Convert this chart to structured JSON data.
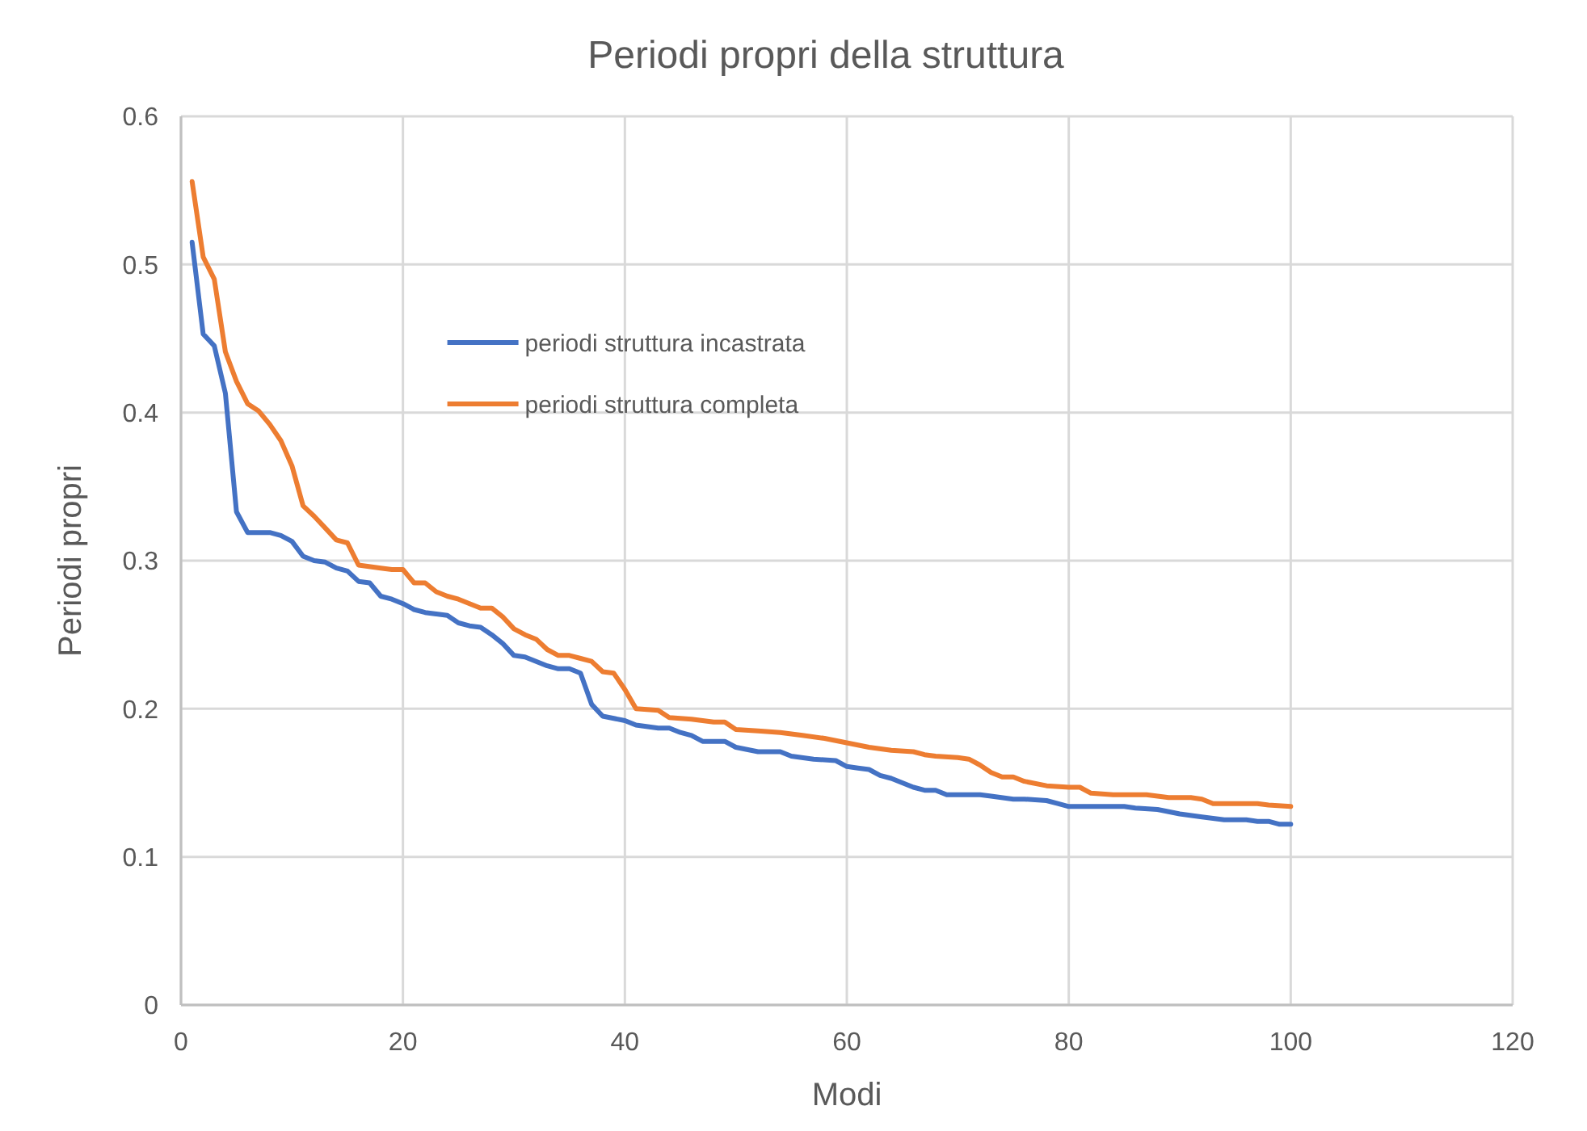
{
  "chart_data": {
    "type": "line",
    "title": "Periodi propri della struttura",
    "xlabel": "Modi",
    "ylabel": "Periodi propri",
    "xlim": [
      0,
      120
    ],
    "xticks": [
      0,
      20,
      40,
      60,
      80,
      100,
      120
    ],
    "ylim": [
      0,
      0.6
    ],
    "yticks": [
      0,
      0.1,
      0.2,
      0.3,
      0.4,
      0.5,
      0.6
    ],
    "grid": true,
    "legend": "top left",
    "marker": "none",
    "line_style": "solid",
    "series": [
      {
        "name": "periodi struttura incastrata",
        "color": "#4472c4",
        "x": [
          1,
          2,
          3,
          4,
          5,
          6,
          8,
          9,
          10,
          11,
          12,
          13,
          14,
          15,
          16,
          17,
          18,
          19,
          20,
          21,
          22,
          24,
          25,
          26,
          27,
          28,
          29,
          30,
          31,
          32,
          33,
          34,
          35,
          36,
          37,
          38,
          40,
          41,
          43,
          44,
          45,
          46,
          47,
          49,
          50,
          52,
          54,
          55,
          57,
          59,
          60,
          61,
          62,
          63,
          64,
          66,
          67,
          68,
          69,
          72,
          73,
          75,
          76,
          78,
          79,
          80,
          85,
          86,
          88,
          90,
          92,
          94,
          96,
          97,
          98,
          99,
          100
        ],
        "values": [
          0.515,
          0.453,
          0.445,
          0.413,
          0.333,
          0.319,
          0.319,
          0.317,
          0.313,
          0.303,
          0.3,
          0.299,
          0.295,
          0.293,
          0.286,
          0.285,
          0.276,
          0.274,
          0.271,
          0.267,
          0.265,
          0.263,
          0.258,
          0.256,
          0.255,
          0.25,
          0.244,
          0.236,
          0.235,
          0.232,
          0.229,
          0.227,
          0.227,
          0.224,
          0.203,
          0.195,
          0.192,
          0.189,
          0.187,
          0.187,
          0.184,
          0.182,
          0.178,
          0.178,
          0.174,
          0.171,
          0.171,
          0.168,
          0.166,
          0.165,
          0.161,
          0.16,
          0.159,
          0.155,
          0.153,
          0.147,
          0.145,
          0.145,
          0.142,
          0.142,
          0.141,
          0.139,
          0.139,
          0.138,
          0.136,
          0.134,
          0.134,
          0.133,
          0.132,
          0.129,
          0.127,
          0.125,
          0.125,
          0.124,
          0.124,
          0.122,
          0.122
        ]
      },
      {
        "name": "periodi struttura completa",
        "color": "#ed7d31",
        "x": [
          1,
          2,
          3,
          4,
          5,
          6,
          7,
          8,
          9,
          10,
          11,
          12,
          13,
          14,
          15,
          16,
          18,
          19,
          20,
          21,
          22,
          23,
          24,
          25,
          26,
          27,
          28,
          29,
          30,
          31,
          32,
          33,
          34,
          35,
          36,
          37,
          38,
          39,
          40,
          41,
          43,
          44,
          46,
          47,
          48,
          49,
          50,
          52,
          54,
          56,
          58,
          60,
          62,
          64,
          66,
          67,
          68,
          70,
          71,
          72,
          73,
          74,
          75,
          76,
          78,
          80,
          81,
          82,
          84,
          87,
          88,
          89,
          91,
          92,
          93,
          96,
          97,
          98,
          100
        ],
        "values": [
          0.556,
          0.505,
          0.49,
          0.441,
          0.421,
          0.406,
          0.401,
          0.392,
          0.381,
          0.364,
          0.337,
          0.33,
          0.322,
          0.314,
          0.312,
          0.297,
          0.295,
          0.294,
          0.294,
          0.285,
          0.285,
          0.279,
          0.276,
          0.274,
          0.271,
          0.268,
          0.268,
          0.262,
          0.254,
          0.25,
          0.247,
          0.24,
          0.236,
          0.236,
          0.234,
          0.232,
          0.225,
          0.224,
          0.213,
          0.2,
          0.199,
          0.194,
          0.193,
          0.192,
          0.191,
          0.191,
          0.186,
          0.185,
          0.184,
          0.182,
          0.18,
          0.177,
          0.174,
          0.172,
          0.171,
          0.169,
          0.168,
          0.167,
          0.166,
          0.162,
          0.157,
          0.154,
          0.154,
          0.151,
          0.148,
          0.147,
          0.147,
          0.143,
          0.142,
          0.142,
          0.141,
          0.14,
          0.14,
          0.139,
          0.136,
          0.136,
          0.136,
          0.135,
          0.134
        ]
      }
    ]
  }
}
